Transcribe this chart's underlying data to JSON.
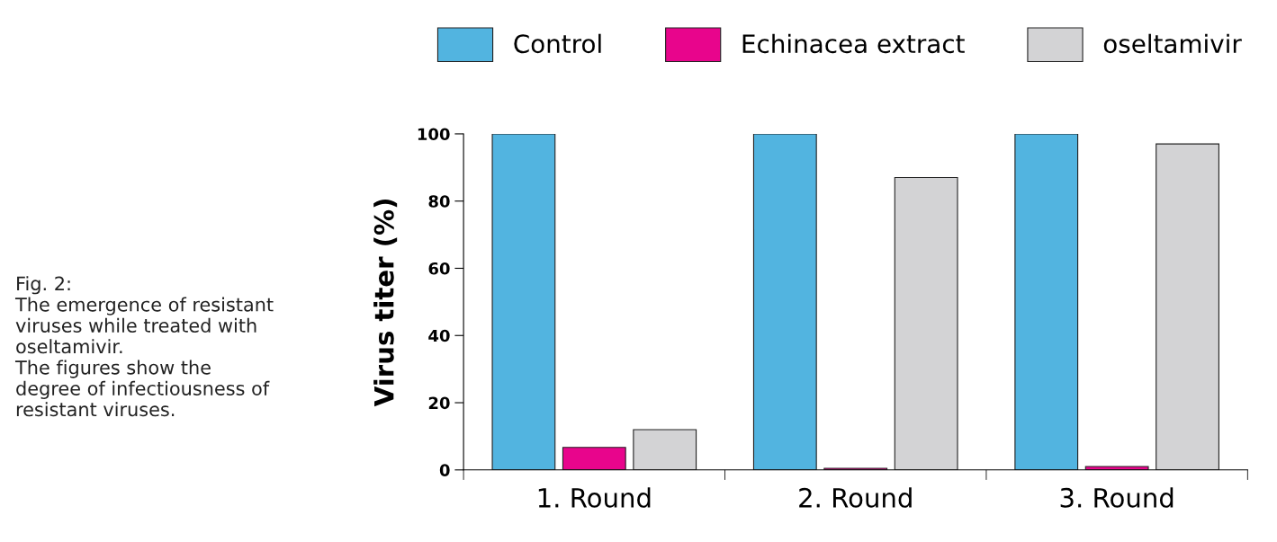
{
  "chart_data": {
    "type": "bar",
    "categories": [
      "1. Round",
      "2. Round",
      "3. Round"
    ],
    "series": [
      {
        "name": "Control",
        "color": "#52b4e0",
        "values": [
          100,
          100,
          100
        ]
      },
      {
        "name": "Echinacea extract",
        "color": "#e8058c",
        "values": [
          6.7,
          0.5,
          1
        ]
      },
      {
        "name": "oseltamivir",
        "color": "#d3d3d5",
        "values": [
          12,
          87,
          97
        ]
      }
    ],
    "ylabel": "Virus titer (%)",
    "ylim": [
      0,
      100
    ],
    "yticks": [
      0,
      20,
      40,
      60,
      80,
      100
    ],
    "grid": false,
    "legend": "top right",
    "annotations": [
      "Fig. 2:\nThe emergence of resistant\nviruses while treated with\noseltamivir.\nThe figures show the\ndegree of infectiousness of\nresistant viruses."
    ]
  }
}
